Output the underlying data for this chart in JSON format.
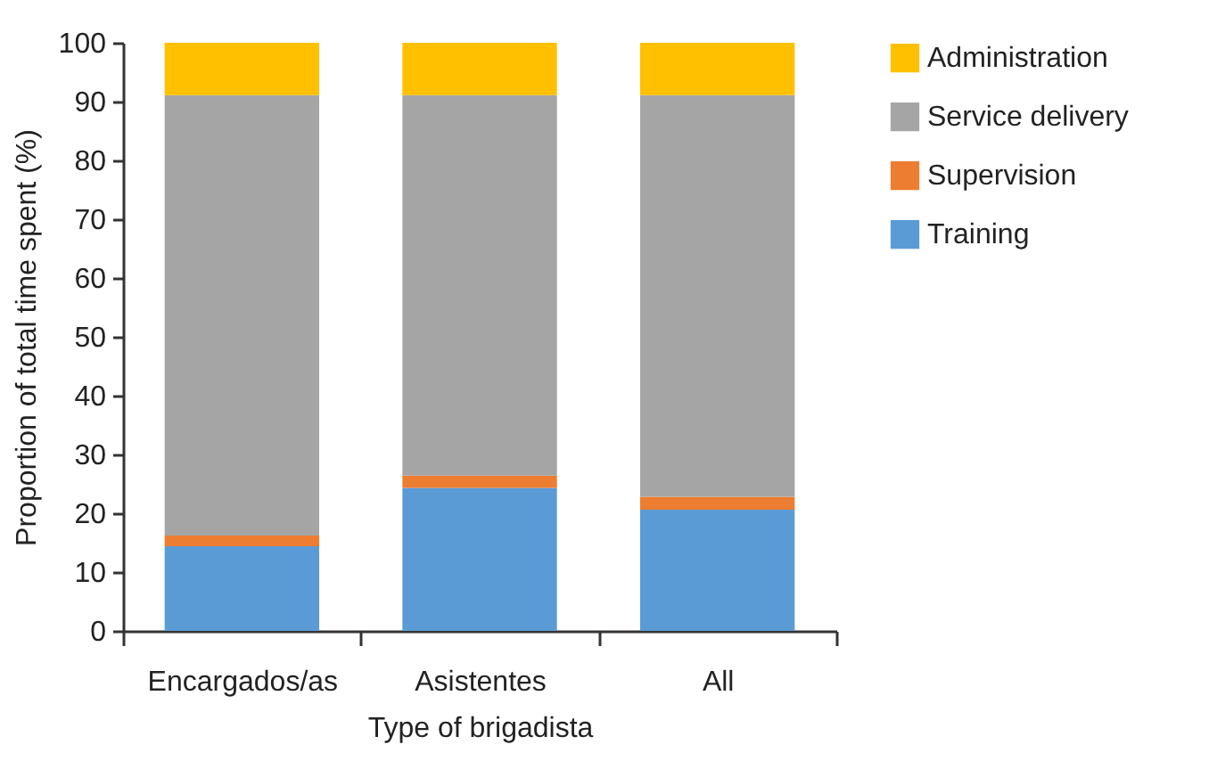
{
  "chart_data": {
    "type": "bar",
    "stacked": true,
    "xlabel": "Type of brigadista",
    "ylabel": "Proportion of total time spent (%)",
    "categories": [
      "Encargados/as",
      "Asistentes",
      "All"
    ],
    "series": [
      {
        "name": "Training",
        "color": "#5b9bd5",
        "values": [
          14.4,
          24.3,
          20.6
        ]
      },
      {
        "name": "Supervision",
        "color": "#ed7d31",
        "values": [
          1.8,
          2.1,
          2.2
        ]
      },
      {
        "name": "Service delivery",
        "color": "#a5a5a5",
        "values": [
          74.9,
          64.7,
          68.3
        ]
      },
      {
        "name": "Administration",
        "color": "#ffc000",
        "values": [
          8.9,
          8.9,
          8.9
        ]
      }
    ],
    "ylim": [
      0,
      100
    ],
    "yticks": [
      0,
      10,
      20,
      30,
      40,
      50,
      60,
      70,
      80,
      90,
      100
    ],
    "grid": false,
    "legend": "right"
  }
}
